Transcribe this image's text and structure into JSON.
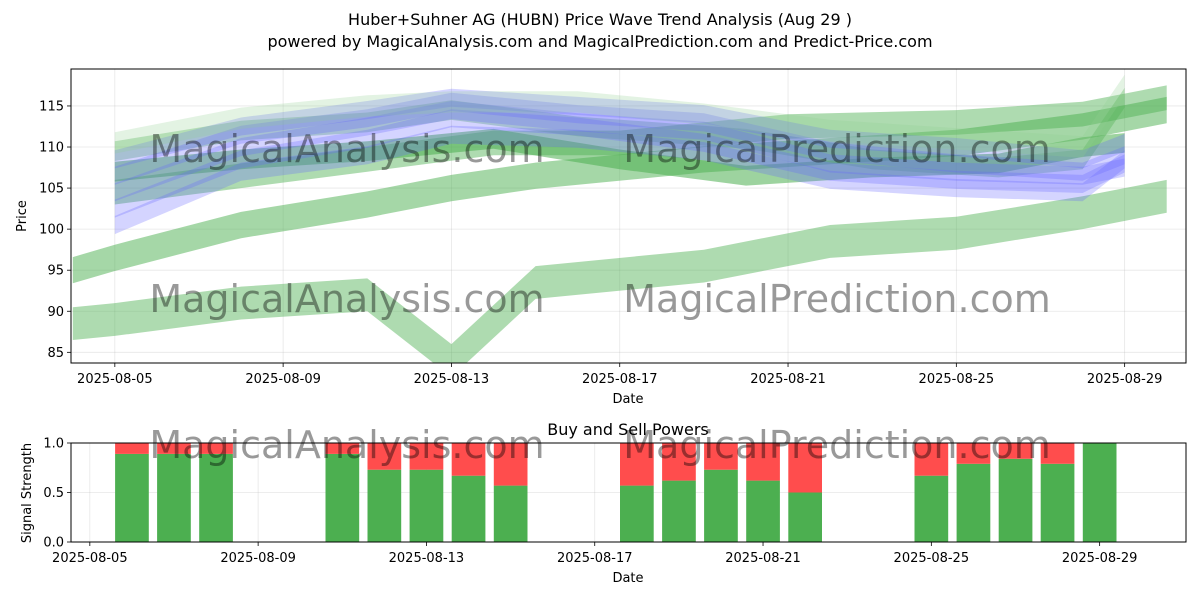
{
  "title_line1": "Huber+Suhner AG (HUBN) Price Wave Trend Analysis (Aug 29 )",
  "title_line2": "powered by MagicalAnalysis.com and MagicalPrediction.com and Predict-Price.com",
  "watermarks": [
    "MagicalAnalysis.com",
    "MagicalPrediction.com"
  ],
  "colors": {
    "buy": "#4caf50",
    "sell": "#ff4d4d",
    "wave_green": "#4caf50",
    "wave_blue": "#6666ff"
  },
  "chart_data": [
    {
      "type": "area",
      "title": "",
      "xlabel": "Date",
      "ylabel": "Price",
      "ylim": [
        83.7,
        119.5
      ],
      "xlim": [
        "2025-08-03 23:00",
        "2025-08-30 11:00"
      ],
      "xticks": [
        "2025-08-05",
        "2025-08-09",
        "2025-08-13",
        "2025-08-17",
        "2025-08-21",
        "2025-08-25",
        "2025-08-29"
      ],
      "yticks": [
        85,
        90,
        95,
        100,
        105,
        110,
        115
      ],
      "grid": true,
      "series": [
        {
          "kind": "green",
          "opacity": 0.45,
          "band": 4.0,
          "x": [
            "2025-08-04",
            "2025-08-05",
            "2025-08-08",
            "2025-08-11",
            "2025-08-13",
            "2025-08-15",
            "2025-08-19",
            "2025-08-22",
            "2025-08-25",
            "2025-08-28",
            "2025-08-30"
          ],
          "y": [
            88.5,
            89.0,
            91.0,
            92.0,
            84.0,
            93.5,
            95.5,
            98.5,
            99.5,
            102.0,
            104.0
          ]
        },
        {
          "kind": "green",
          "opacity": 0.5,
          "band": 3.2,
          "x": [
            "2025-08-04",
            "2025-08-05",
            "2025-08-08",
            "2025-08-11",
            "2025-08-13",
            "2025-08-15",
            "2025-08-19",
            "2025-08-22",
            "2025-08-25",
            "2025-08-28",
            "2025-08-30"
          ],
          "y": [
            95.0,
            96.5,
            100.5,
            103.0,
            105.0,
            106.5,
            108.5,
            109.5,
            110.5,
            112.5,
            114.5
          ]
        },
        {
          "kind": "green",
          "opacity": 0.45,
          "band": 3.0,
          "x": [
            "2025-08-05",
            "2025-08-08",
            "2025-08-11",
            "2025-08-14",
            "2025-08-17",
            "2025-08-21",
            "2025-08-25",
            "2025-08-28",
            "2025-08-30"
          ],
          "y": [
            104.5,
            106.5,
            108.5,
            110.5,
            110.5,
            112.5,
            113.0,
            114.0,
            116.0
          ]
        },
        {
          "kind": "green",
          "opacity": 0.55,
          "band": 2.4,
          "x": [
            "2025-08-05",
            "2025-08-08",
            "2025-08-11",
            "2025-08-14",
            "2025-08-17",
            "2025-08-20",
            "2025-08-23",
            "2025-08-26",
            "2025-08-28",
            "2025-08-29"
          ],
          "y": [
            107.0,
            108.5,
            109.5,
            111.0,
            108.5,
            106.5,
            107.5,
            108.0,
            110.0,
            110.5
          ]
        },
        {
          "kind": "green",
          "opacity": 0.35,
          "band": 2.4,
          "x": [
            "2025-08-05",
            "2025-08-08",
            "2025-08-11",
            "2025-08-13",
            "2025-08-16",
            "2025-08-20",
            "2025-08-23",
            "2025-08-26",
            "2025-08-28",
            "2025-08-29"
          ],
          "y": [
            109.5,
            112.0,
            113.0,
            114.5,
            112.5,
            111.0,
            108.5,
            107.5,
            108.5,
            116.0
          ]
        },
        {
          "kind": "blue",
          "opacity": 0.28,
          "band": 2.2,
          "x": [
            "2025-08-05",
            "2025-08-08",
            "2025-08-11",
            "2025-08-13",
            "2025-08-16",
            "2025-08-19",
            "2025-08-22",
            "2025-08-25",
            "2025-08-28",
            "2025-08-29"
          ],
          "y": [
            100.5,
            107.0,
            109.0,
            111.5,
            111.0,
            109.5,
            106.0,
            105.0,
            104.5,
            108.5
          ]
        },
        {
          "kind": "blue",
          "opacity": 0.28,
          "band": 2.2,
          "x": [
            "2025-08-05",
            "2025-08-08",
            "2025-08-11",
            "2025-08-13",
            "2025-08-16",
            "2025-08-19",
            "2025-08-22",
            "2025-08-25",
            "2025-08-28",
            "2025-08-29"
          ],
          "y": [
            102.5,
            108.5,
            111.0,
            113.5,
            112.5,
            110.5,
            107.0,
            106.0,
            105.5,
            108.0
          ]
        },
        {
          "kind": "blue",
          "opacity": 0.28,
          "band": 2.2,
          "x": [
            "2025-08-05",
            "2025-08-08",
            "2025-08-11",
            "2025-08-13",
            "2025-08-16",
            "2025-08-19",
            "2025-08-22",
            "2025-08-25",
            "2025-08-28",
            "2025-08-29"
          ],
          "y": [
            104.5,
            110.0,
            112.5,
            114.5,
            113.0,
            112.0,
            108.0,
            107.0,
            106.5,
            107.5
          ]
        },
        {
          "kind": "blue",
          "opacity": 0.28,
          "band": 2.2,
          "x": [
            "2025-08-05",
            "2025-08-08",
            "2025-08-11",
            "2025-08-13",
            "2025-08-16",
            "2025-08-19",
            "2025-08-22",
            "2025-08-25",
            "2025-08-28",
            "2025-08-29"
          ],
          "y": [
            106.5,
            111.5,
            113.5,
            115.5,
            114.0,
            113.0,
            109.5,
            108.0,
            107.0,
            109.0
          ]
        },
        {
          "kind": "blue",
          "opacity": 0.28,
          "band": 2.2,
          "x": [
            "2025-08-05",
            "2025-08-08",
            "2025-08-11",
            "2025-08-13",
            "2025-08-16",
            "2025-08-19",
            "2025-08-22",
            "2025-08-25",
            "2025-08-28",
            "2025-08-29"
          ],
          "y": [
            108.5,
            112.5,
            114.5,
            116.0,
            115.0,
            114.0,
            111.0,
            110.0,
            108.5,
            110.5
          ]
        },
        {
          "kind": "lightgreen",
          "opacity": 0.25,
          "band": 2.6,
          "x": [
            "2025-08-05",
            "2025-08-08",
            "2025-08-11",
            "2025-08-13",
            "2025-08-16",
            "2025-08-19",
            "2025-08-22",
            "2025-08-25",
            "2025-08-28",
            "2025-08-29"
          ],
          "y": [
            110.5,
            113.5,
            115.0,
            115.5,
            115.5,
            114.0,
            112.0,
            111.0,
            110.0,
            117.5
          ]
        }
      ]
    },
    {
      "type": "bar",
      "title": "Buy and Sell Powers",
      "xlabel": "Date",
      "ylabel": "Signal Strength",
      "ylim": [
        0,
        1.0
      ],
      "xticks": [
        "2025-08-05",
        "2025-08-09",
        "2025-08-13",
        "2025-08-17",
        "2025-08-21",
        "2025-08-25",
        "2025-08-29"
      ],
      "yticks": [
        "0.0",
        "0.5",
        "1.0"
      ],
      "categories": [
        "2025-08-06",
        "2025-08-07",
        "2025-08-08",
        "2025-08-11",
        "2025-08-12",
        "2025-08-13",
        "2025-08-14",
        "2025-08-15",
        "2025-08-18",
        "2025-08-19",
        "2025-08-20",
        "2025-08-21",
        "2025-08-22",
        "2025-08-25",
        "2025-08-26",
        "2025-08-27",
        "2025-08-28",
        "2025-08-29"
      ],
      "series": [
        {
          "name": "Buy",
          "values": [
            0.89,
            0.89,
            0.89,
            0.89,
            0.73,
            0.73,
            0.67,
            0.57,
            0.57,
            0.62,
            0.73,
            0.62,
            0.5,
            0.67,
            0.79,
            0.84,
            0.79,
            1.0
          ]
        },
        {
          "name": "Sell",
          "values": [
            0.11,
            0.11,
            0.11,
            0.11,
            0.27,
            0.27,
            0.33,
            0.43,
            0.43,
            0.38,
            0.27,
            0.38,
            0.5,
            0.33,
            0.21,
            0.16,
            0.21,
            0.0
          ]
        }
      ]
    }
  ]
}
